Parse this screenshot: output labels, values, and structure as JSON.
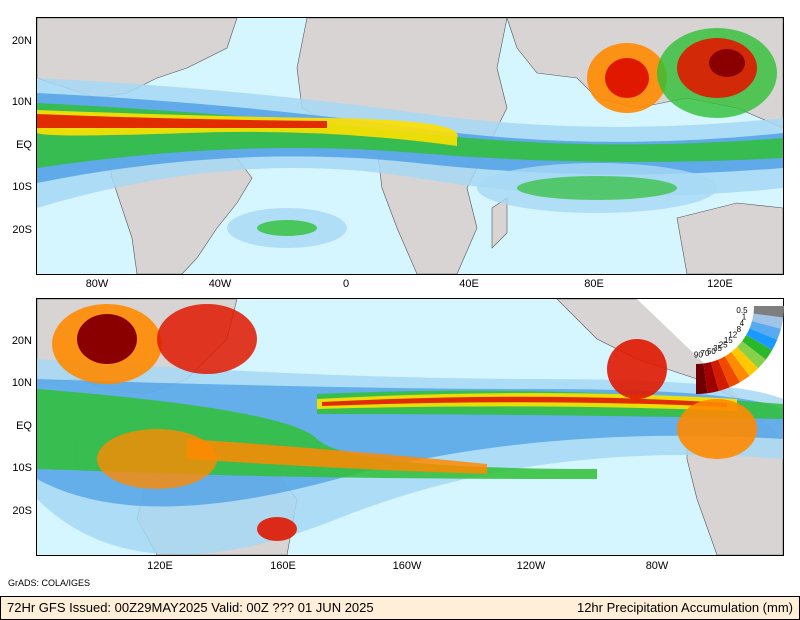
{
  "panels": {
    "top": {
      "lat_labels": [
        "20N",
        "10N",
        "EQ",
        "10S",
        "20S"
      ],
      "lon_labels": [
        "80W",
        "40W",
        "0",
        "40E",
        "80E",
        "120E"
      ]
    },
    "bottom": {
      "lat_labels": [
        "20N",
        "10N",
        "EQ",
        "10S",
        "20S"
      ],
      "lon_labels": [
        "120E",
        "160E",
        "160W",
        "120W",
        "80W"
      ]
    }
  },
  "legend": {
    "values": [
      "90",
      "70",
      "50",
      "35",
      "25",
      "15",
      "12",
      "8",
      "4",
      "1",
      "0.5"
    ],
    "colors": [
      "#6e0000",
      "#a00000",
      "#d21c00",
      "#f04a00",
      "#ff8c00",
      "#ffc800",
      "#88d048",
      "#2ab82a",
      "#1a9aff",
      "#5aaaf0",
      "#a0c4e8",
      "#7e7e7e"
    ]
  },
  "colors": {
    "ocean": "#d6f6ff",
    "land": "#d8d4d4",
    "light_blue": "#a6d8f5",
    "mid_blue": "#4c9de6",
    "green": "#2fbf35",
    "yellow": "#ffe000",
    "orange": "#ff8a00",
    "red": "#e01800",
    "dark_red": "#8a0000"
  },
  "credit": "GrADS: COLA/IGES",
  "footer": {
    "left": "72Hr GFS Issued: 00Z29MAY2025 Valid: 00Z ??? 01 JUN 2025",
    "right": "12hr Precipitation Accumulation (mm)"
  }
}
